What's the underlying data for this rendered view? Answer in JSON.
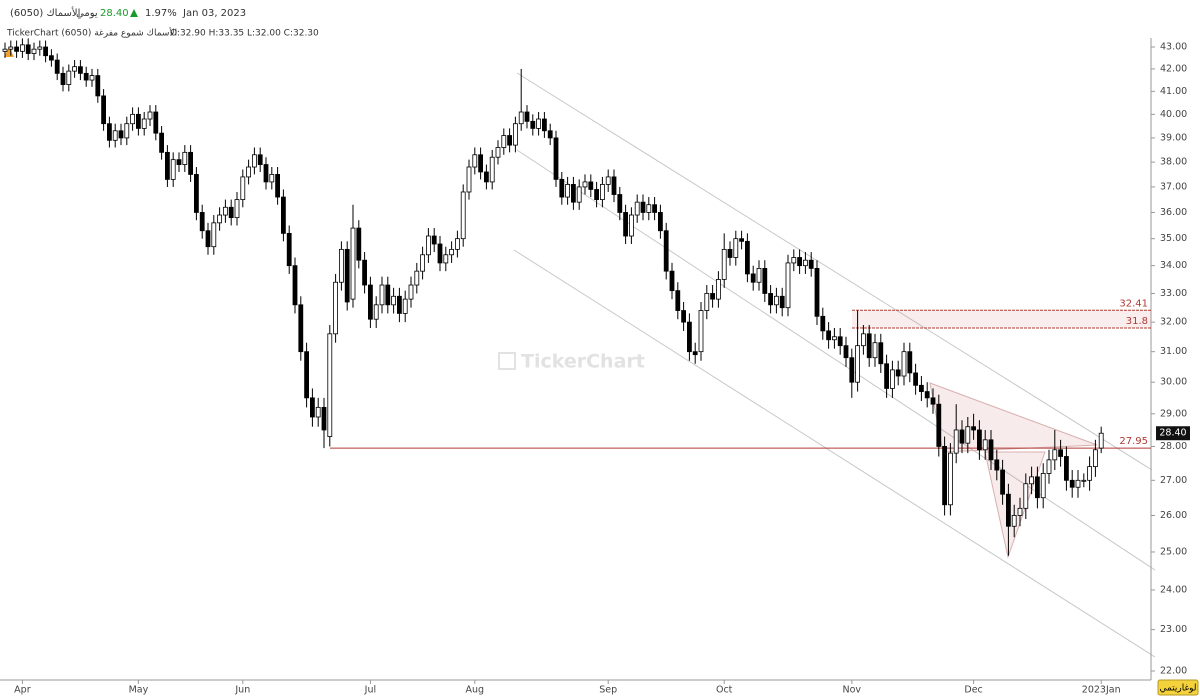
{
  "header": {
    "symbol": "الأسماك (6050)",
    "interval": "يومي",
    "price": "28.40",
    "change": "1.97%",
    "date": "Jan 03, 2023",
    "legend_text": "TickerChart الأسماك شموع مفرغة (6050)",
    "ohlc": "O:32.90 H:33.35 L:32.00 C:32.30"
  },
  "watermark": "TickerChart",
  "scale_button": "لوغاريتمي",
  "chart_data": {
    "type": "candlestick",
    "ylog": true,
    "grid": false,
    "up_color": "#ffffff",
    "down_color": "#000000",
    "level_color": "#b03a35",
    "ylim": [
      22,
      43
    ],
    "yticks": [
      {
        "value": 22,
        "label": "22.00"
      },
      {
        "value": 23,
        "label": "23.00"
      },
      {
        "value": 24,
        "label": "24.00"
      },
      {
        "value": 25,
        "label": "25.00"
      },
      {
        "value": 26,
        "label": "26.00"
      },
      {
        "value": 27,
        "label": "27.00"
      },
      {
        "value": 28,
        "label": "28.00"
      },
      {
        "value": 29,
        "label": "29.00"
      },
      {
        "value": 30,
        "label": "30.00"
      },
      {
        "value": 31,
        "label": "31.00"
      },
      {
        "value": 32,
        "label": "32.00"
      },
      {
        "value": 33,
        "label": "33.00"
      },
      {
        "value": 34,
        "label": "34.00"
      },
      {
        "value": 35,
        "label": "35.00"
      },
      {
        "value": 36,
        "label": "36.00"
      },
      {
        "value": 37,
        "label": "37.00"
      },
      {
        "value": 38,
        "label": "38.00"
      },
      {
        "value": 39,
        "label": "39.00"
      },
      {
        "value": 40,
        "label": "40.00"
      },
      {
        "value": 41,
        "label": "41.00"
      },
      {
        "value": 42,
        "label": "42.00"
      },
      {
        "value": 43,
        "label": "43.00"
      }
    ],
    "levels": [
      32.41,
      31.8,
      27.95
    ],
    "last_price": {
      "value": 28.4,
      "label": "28.40"
    },
    "categories": [
      null,
      null,
      null,
      "Apr",
      null,
      null,
      null,
      null,
      null,
      null,
      null,
      null,
      null,
      null,
      null,
      null,
      null,
      null,
      null,
      null,
      null,
      null,
      null,
      "May",
      null,
      null,
      null,
      null,
      null,
      null,
      null,
      null,
      null,
      null,
      null,
      null,
      null,
      null,
      null,
      null,
      null,
      "Jun",
      null,
      null,
      null,
      null,
      null,
      null,
      null,
      null,
      null,
      null,
      null,
      null,
      null,
      null,
      null,
      null,
      null,
      null,
      null,
      null,
      null,
      "Jul",
      null,
      null,
      null,
      null,
      null,
      null,
      null,
      null,
      null,
      null,
      null,
      null,
      null,
      null,
      null,
      null,
      null,
      "Aug",
      null,
      null,
      null,
      null,
      null,
      null,
      null,
      null,
      null,
      null,
      null,
      null,
      null,
      null,
      null,
      null,
      null,
      null,
      null,
      null,
      null,
      null,
      "Sep",
      null,
      null,
      null,
      null,
      null,
      null,
      null,
      null,
      null,
      null,
      null,
      null,
      null,
      null,
      null,
      null,
      null,
      null,
      null,
      "Oct",
      null,
      null,
      null,
      null,
      null,
      null,
      null,
      null,
      null,
      null,
      null,
      null,
      null,
      null,
      null,
      null,
      null,
      null,
      null,
      null,
      null,
      "Nov",
      null,
      null,
      null,
      null,
      null,
      null,
      null,
      null,
      null,
      null,
      null,
      null,
      null,
      null,
      null,
      null,
      null,
      null,
      null,
      null,
      "Dec",
      null,
      null,
      null,
      null,
      null,
      null,
      null,
      null,
      null,
      null,
      null,
      null,
      null,
      null,
      null,
      null,
      null,
      null,
      null,
      null,
      null,
      "2023Jan"
    ],
    "open": [
      42.8,
      42.9,
      43.0,
      42.8,
      43.1,
      42.7,
      42.9,
      43.0,
      42.6,
      42.4,
      41.8,
      41.3,
      41.9,
      42.1,
      41.8,
      41.5,
      41.7,
      40.8,
      39.6,
      38.9,
      39.3,
      39.0,
      39.6,
      40.0,
      39.4,
      39.8,
      40.1,
      39.2,
      38.4,
      37.3,
      38.1,
      37.9,
      38.4,
      37.5,
      36.0,
      35.3,
      34.7,
      35.6,
      35.9,
      36.2,
      35.8,
      36.5,
      37.4,
      37.8,
      38.3,
      37.9,
      37.2,
      37.5,
      36.6,
      35.2,
      34.0,
      32.6,
      31.0,
      29.5,
      28.9,
      29.2,
      28.3,
      31.6,
      33.4,
      34.6,
      32.8,
      35.4,
      34.2,
      33.3,
      32.1,
      32.6,
      33.3,
      32.6,
      32.9,
      32.3,
      32.8,
      33.3,
      33.8,
      34.4,
      35.1,
      34.8,
      34.1,
      34.4,
      34.6,
      35.0,
      36.8,
      37.8,
      38.3,
      37.6,
      37.2,
      38.2,
      38.6,
      39.1,
      38.7,
      39.6,
      40.1,
      39.7,
      39.4,
      39.8,
      39.3,
      39.0,
      37.3,
      36.6,
      37.1,
      36.4,
      37.0,
      37.2,
      36.9,
      36.5,
      37.1,
      37.4,
      36.7,
      36.0,
      35.1,
      35.9,
      36.4,
      36.0,
      36.3,
      36.0,
      35.3,
      33.8,
      33.1,
      32.4,
      32.0,
      31.0,
      31.0,
      32.4,
      33.0,
      32.8,
      33.5,
      34.6,
      34.3,
      35.0,
      34.9,
      33.7,
      33.4,
      33.9,
      33.0,
      32.6,
      32.9,
      32.5,
      34.1,
      34.3,
      34.0,
      34.2,
      33.9,
      32.2,
      31.7,
      31.4,
      31.5,
      31.2,
      30.8,
      30.0,
      31.2,
      31.6,
      30.8,
      31.3,
      30.6,
      29.8,
      30.4,
      30.2,
      31.0,
      30.3,
      29.9,
      29.7,
      29.5,
      29.3,
      28.0,
      26.3,
      27.8,
      28.5,
      28.1,
      28.6,
      28.5,
      27.9,
      28.2,
      27.6,
      27.3,
      26.6,
      25.7,
      26.0,
      26.2,
      26.9,
      27.1,
      26.5,
      27.2,
      27.6,
      27.9,
      27.7,
      27.0,
      26.8,
      27.0,
      27.0,
      27.4,
      27.95
    ],
    "high": [
      43.2,
      43.3,
      43.3,
      43.4,
      43.4,
      43.2,
      43.3,
      43.3,
      42.9,
      42.7,
      42.1,
      42.2,
      42.4,
      42.4,
      42.1,
      42.0,
      42.0,
      41.1,
      39.9,
      39.6,
      39.6,
      39.9,
      40.3,
      40.3,
      40.1,
      40.4,
      40.4,
      39.5,
      38.7,
      38.4,
      38.4,
      38.7,
      38.7,
      37.8,
      36.3,
      35.6,
      35.9,
      36.2,
      36.5,
      36.5,
      36.8,
      37.7,
      38.1,
      38.6,
      38.6,
      38.2,
      37.8,
      37.8,
      36.9,
      35.5,
      34.3,
      32.9,
      31.3,
      29.8,
      29.5,
      29.5,
      31.9,
      33.7,
      34.9,
      34.9,
      36.3,
      35.7,
      34.5,
      33.6,
      32.9,
      33.6,
      33.6,
      33.2,
      33.2,
      33.1,
      33.6,
      34.1,
      34.7,
      35.4,
      35.4,
      35.1,
      34.7,
      34.9,
      35.3,
      37.1,
      38.1,
      38.6,
      38.6,
      37.9,
      38.5,
      38.9,
      39.4,
      39.4,
      39.9,
      42.0,
      40.4,
      40.0,
      40.1,
      40.1,
      39.6,
      39.3,
      37.6,
      37.4,
      37.4,
      37.3,
      37.5,
      37.5,
      37.2,
      37.4,
      37.7,
      37.7,
      37.0,
      36.3,
      36.2,
      36.7,
      36.7,
      36.6,
      36.6,
      36.3,
      35.6,
      34.1,
      33.4,
      32.7,
      32.3,
      31.3,
      32.7,
      33.3,
      33.3,
      33.8,
      35.2,
      34.9,
      35.3,
      35.3,
      35.2,
      34.0,
      34.2,
      34.2,
      33.3,
      33.2,
      33.2,
      34.4,
      34.6,
      34.6,
      34.5,
      34.5,
      34.2,
      32.5,
      32.0,
      31.8,
      31.8,
      31.5,
      31.1,
      32.4,
      31.9,
      31.9,
      31.6,
      31.6,
      30.9,
      30.7,
      30.7,
      31.3,
      31.3,
      30.6,
      30.2,
      30.0,
      29.8,
      29.6,
      28.3,
      28.1,
      29.3,
      28.8,
      28.9,
      29.0,
      28.8,
      28.5,
      28.5,
      27.9,
      27.6,
      26.9,
      26.3,
      26.5,
      27.2,
      27.4,
      27.4,
      27.5,
      27.9,
      28.5,
      28.2,
      28.0,
      27.3,
      27.3,
      27.2,
      27.7,
      28.2,
      28.6
    ],
    "low": [
      42.5,
      42.6,
      42.5,
      42.5,
      42.4,
      42.4,
      42.6,
      42.3,
      42.1,
      41.5,
      41.0,
      41.0,
      41.6,
      41.5,
      41.2,
      41.2,
      40.5,
      39.3,
      38.6,
      38.6,
      38.7,
      38.7,
      39.3,
      39.1,
      39.1,
      39.5,
      38.9,
      38.1,
      37.0,
      37.0,
      37.6,
      37.6,
      37.2,
      35.7,
      35.0,
      34.4,
      34.4,
      35.3,
      35.6,
      35.5,
      35.5,
      36.2,
      37.1,
      37.5,
      37.6,
      36.9,
      36.9,
      36.3,
      34.9,
      33.7,
      32.3,
      30.7,
      29.2,
      28.6,
      28.6,
      27.95,
      28.0,
      31.3,
      33.1,
      32.4,
      32.5,
      33.9,
      33.0,
      31.8,
      31.8,
      32.3,
      32.3,
      32.3,
      32.0,
      32.0,
      32.5,
      33.0,
      33.5,
      34.1,
      34.5,
      33.8,
      33.8,
      34.1,
      34.3,
      34.7,
      36.5,
      37.5,
      37.3,
      36.9,
      36.9,
      37.9,
      38.3,
      38.4,
      38.4,
      39.3,
      39.4,
      39.1,
      39.1,
      39.0,
      38.7,
      37.0,
      36.3,
      36.3,
      36.1,
      36.1,
      36.7,
      36.6,
      36.2,
      36.2,
      36.8,
      36.4,
      35.7,
      34.8,
      34.8,
      35.6,
      35.7,
      35.7,
      35.7,
      35.0,
      33.5,
      32.8,
      32.1,
      31.7,
      30.7,
      30.6,
      30.7,
      32.1,
      32.5,
      32.5,
      33.2,
      34.0,
      34.0,
      34.6,
      33.4,
      33.1,
      33.1,
      32.7,
      32.3,
      32.3,
      32.2,
      32.2,
      33.8,
      33.7,
      33.7,
      33.6,
      31.9,
      31.4,
      31.1,
      31.1,
      30.9,
      30.5,
      29.5,
      29.7,
      30.9,
      30.5,
      30.5,
      30.3,
      29.5,
      29.5,
      29.9,
      29.9,
      30.0,
      29.6,
      29.4,
      29.2,
      29.0,
      27.7,
      26.0,
      26.0,
      27.5,
      27.8,
      27.8,
      28.2,
      27.6,
      27.6,
      27.3,
      27.0,
      26.3,
      24.9,
      25.4,
      25.7,
      25.9,
      26.6,
      26.2,
      26.2,
      26.9,
      27.3,
      27.4,
      26.7,
      26.5,
      26.5,
      26.8,
      26.7,
      27.1,
      27.8
    ],
    "close": [
      42.9,
      43.0,
      42.8,
      43.1,
      42.7,
      42.9,
      43.0,
      42.6,
      42.4,
      41.8,
      41.3,
      41.9,
      42.1,
      41.8,
      41.5,
      41.7,
      40.8,
      39.6,
      38.9,
      39.3,
      39.0,
      39.6,
      40.0,
      39.4,
      39.8,
      40.1,
      39.2,
      38.4,
      37.3,
      38.1,
      37.9,
      38.4,
      37.5,
      36.0,
      35.3,
      34.7,
      35.6,
      35.9,
      36.2,
      35.8,
      36.5,
      37.4,
      37.8,
      38.3,
      37.9,
      37.2,
      37.5,
      36.6,
      35.2,
      34.0,
      32.6,
      31.0,
      29.5,
      28.9,
      29.2,
      28.5,
      31.6,
      33.4,
      34.6,
      32.7,
      35.4,
      34.2,
      33.3,
      32.1,
      32.6,
      33.3,
      32.6,
      32.9,
      32.3,
      32.8,
      33.3,
      33.8,
      34.4,
      35.1,
      34.8,
      34.1,
      34.4,
      34.6,
      35.0,
      36.8,
      37.8,
      38.3,
      37.6,
      37.2,
      38.2,
      38.6,
      39.1,
      38.7,
      39.6,
      40.1,
      39.7,
      39.4,
      39.8,
      39.3,
      39.0,
      37.3,
      36.6,
      37.1,
      36.4,
      37.0,
      37.2,
      36.9,
      36.5,
      37.1,
      37.4,
      36.7,
      36.0,
      35.1,
      35.9,
      36.4,
      36.0,
      36.3,
      36.0,
      35.3,
      33.8,
      33.1,
      32.4,
      32.0,
      31.0,
      30.9,
      32.4,
      33.0,
      32.8,
      33.5,
      34.6,
      34.3,
      35.0,
      34.9,
      33.7,
      33.4,
      33.9,
      33.0,
      32.6,
      32.9,
      32.5,
      34.1,
      34.3,
      34.0,
      34.2,
      33.9,
      32.2,
      31.7,
      31.4,
      31.5,
      31.2,
      30.8,
      30.0,
      31.2,
      31.6,
      30.8,
      31.3,
      30.6,
      29.8,
      30.4,
      30.2,
      31.0,
      30.3,
      29.9,
      29.7,
      29.5,
      29.3,
      28.0,
      26.3,
      27.8,
      28.5,
      28.1,
      28.6,
      28.5,
      27.9,
      28.2,
      27.6,
      27.3,
      26.6,
      25.7,
      26.0,
      26.2,
      26.9,
      27.1,
      26.5,
      27.2,
      27.6,
      27.9,
      27.7,
      27.0,
      26.8,
      27.0,
      27.0,
      27.4,
      27.9,
      28.4
    ]
  }
}
